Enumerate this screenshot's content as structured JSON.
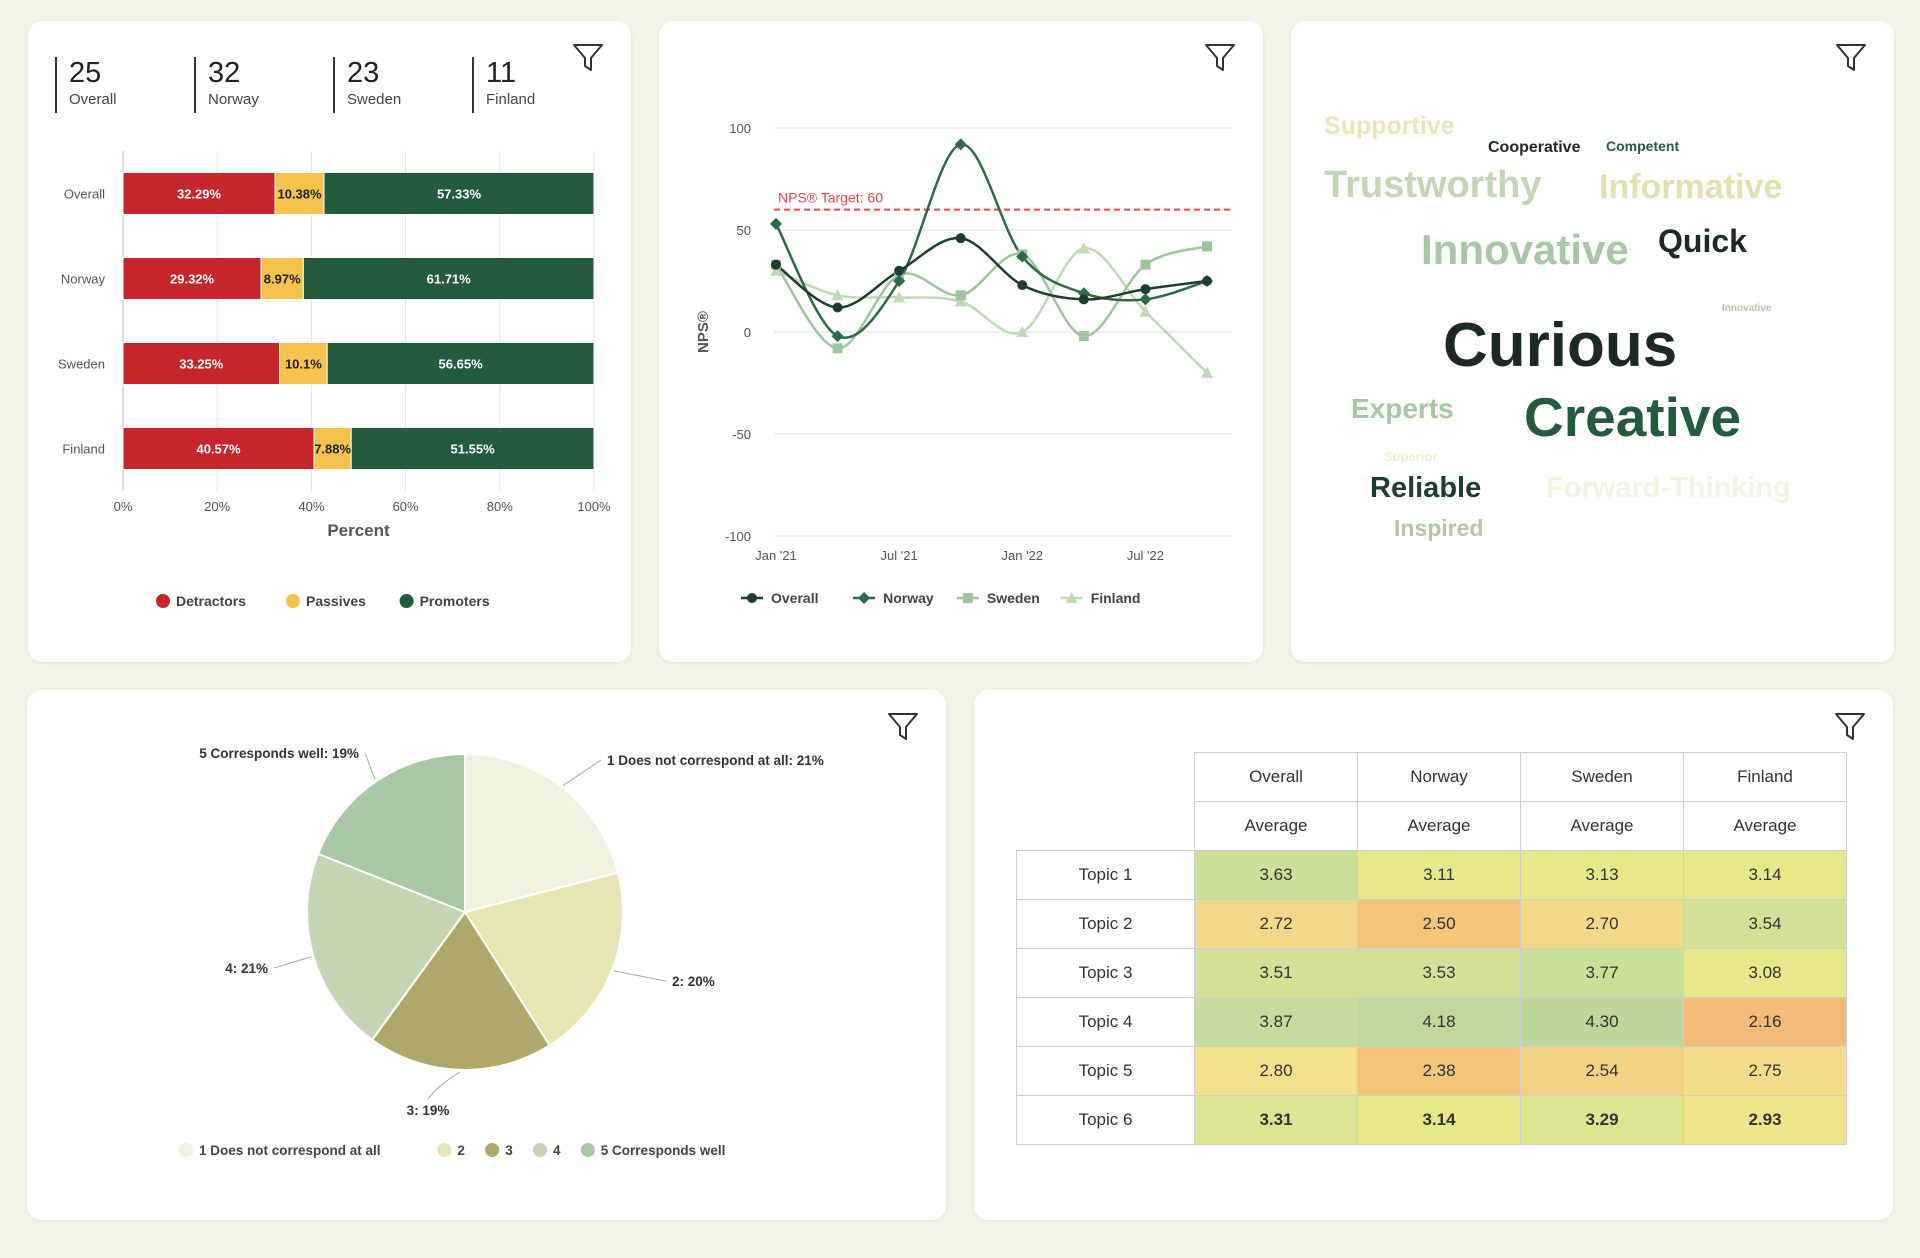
{
  "icons": {
    "filter": "filter-icon"
  },
  "kpis": [
    {
      "value": "25",
      "label": "Overall"
    },
    {
      "value": "32",
      "label": "Norway"
    },
    {
      "value": "23",
      "label": "Sweden"
    },
    {
      "value": "11",
      "label": "Finland"
    }
  ],
  "colors": {
    "detractors": "#c4262b",
    "passives": "#f5c24d",
    "promoters": "#245a3e",
    "target": "#e04848"
  },
  "chart_data": [
    {
      "type": "bar",
      "orientation": "horizontal",
      "stacked": true,
      "categories": [
        "Overall",
        "Norway",
        "Sweden",
        "Finland"
      ],
      "series": [
        {
          "name": "Detractors",
          "values": [
            32.29,
            29.32,
            33.25,
            40.57
          ],
          "labels": [
            "32.29%",
            "29.32%",
            "33.25%",
            "40.57%"
          ],
          "color": "#c4262b"
        },
        {
          "name": "Passives",
          "values": [
            10.38,
            8.97,
            10.1,
            7.88
          ],
          "labels": [
            "10.38%",
            "8.97%",
            "10.1%",
            "7.88%"
          ],
          "color": "#f5c24d"
        },
        {
          "name": "Promoters",
          "values": [
            57.33,
            61.71,
            56.65,
            51.55
          ],
          "labels": [
            "57.33%",
            "61.71%",
            "56.65%",
            "51.55%"
          ],
          "color": "#245a3e"
        }
      ],
      "xlabel": "Percent",
      "xticks": [
        "0%",
        "20%",
        "40%",
        "60%",
        "80%",
        "100%"
      ],
      "xlim": [
        0,
        100
      ],
      "legend": "bottom",
      "grid": true
    },
    {
      "type": "line",
      "x": [
        "2021-01",
        "2021-04",
        "2021-07",
        "2021-10",
        "2022-01",
        "2022-04",
        "2022-07",
        "2022-10"
      ],
      "xticks": [
        "Jan '21",
        "Jul '21",
        "Jan '22",
        "Jul '22"
      ],
      "series": [
        {
          "name": "Overall",
          "values": [
            33,
            12,
            30,
            46,
            23,
            16,
            21,
            25
          ],
          "color": "#1f3d2e",
          "marker": "circle"
        },
        {
          "name": "Norway",
          "values": [
            53,
            -2,
            25,
            92,
            37,
            19,
            16,
            25
          ],
          "color": "#2e6a46",
          "marker": "diamond"
        },
        {
          "name": "Sweden",
          "values": [
            33,
            -8,
            28,
            18,
            38,
            -2,
            33,
            42
          ],
          "color": "#9ec59e",
          "marker": "square"
        },
        {
          "name": "Finland",
          "values": [
            30,
            18,
            17,
            15,
            0,
            41,
            10,
            -20
          ],
          "color": "#c2d9b8",
          "marker": "triangle"
        }
      ],
      "ylabel": "NPS®",
      "yticks": [
        "100",
        "50",
        "0",
        "-50",
        "-100"
      ],
      "ylim": [
        -100,
        100
      ],
      "target": {
        "label": "NPS® Target: 60",
        "value": 60
      },
      "legend": "bottom",
      "grid": true
    },
    {
      "type": "pie",
      "categories": [
        "1 Does not correspond at all",
        "2",
        "3",
        "4",
        "5 Corresponds well"
      ],
      "values": [
        21,
        20,
        19,
        21,
        19
      ],
      "slice_labels": [
        "1 Does not correspond at all: 21%",
        "2: 20%",
        "3: 19%",
        "4: 21%",
        "5 Corresponds well: 19%"
      ],
      "colors": [
        "#f2f2e1",
        "#e8e4b4",
        "#b0a86a",
        "#c5d6b5",
        "#a8c7a4"
      ],
      "legend": "bottom"
    },
    {
      "type": "table",
      "columns": [
        "Overall",
        "Norway",
        "Sweden",
        "Finland"
      ],
      "subheader": "Average",
      "rows": [
        {
          "label": "Topic 1",
          "values": [
            "3.63",
            "3.11",
            "3.13",
            "3.14"
          ],
          "colors": [
            "#cadf98",
            "#e6e88a",
            "#e6e88a",
            "#e6e88a"
          ]
        },
        {
          "label": "Topic 2",
          "values": [
            "2.72",
            "2.50",
            "2.70",
            "3.54"
          ],
          "colors": [
            "#f2d98a",
            "#f2c57a",
            "#f2d98a",
            "#d3e196"
          ]
        },
        {
          "label": "Topic 3",
          "values": [
            "3.51",
            "3.53",
            "3.77",
            "3.08"
          ],
          "colors": [
            "#d3e196",
            "#d3e196",
            "#cadf98",
            "#e8e88a"
          ]
        },
        {
          "label": "Topic 4",
          "values": [
            "3.87",
            "4.18",
            "4.30",
            "2.16"
          ],
          "colors": [
            "#c6dc9c",
            "#bfd79c",
            "#bcd69c",
            "#f2bc78"
          ]
        },
        {
          "label": "Topic 5",
          "values": [
            "2.80",
            "2.38",
            "2.54",
            "2.75"
          ],
          "colors": [
            "#f2e08c",
            "#f2c47a",
            "#f2d386",
            "#f2dd8a"
          ]
        },
        {
          "label": "Topic 6",
          "values": [
            "3.31",
            "3.14",
            "3.29",
            "2.93"
          ],
          "colors": [
            "#dde591",
            "#e6e88a",
            "#dde591",
            "#efe48a"
          ]
        }
      ]
    }
  ],
  "wordcloud": [
    {
      "text": "Supportive",
      "color": "#e9e7b8"
    },
    {
      "text": "Cooperative",
      "color": "#1d2a24"
    },
    {
      "text": "Competent",
      "color": "#2b5a45"
    },
    {
      "text": "Trustworthy",
      "color": "#c5d6b5"
    },
    {
      "text": "Informative",
      "color": "#e2e2b0"
    },
    {
      "text": "Innovative",
      "color": "#a8c7a4"
    },
    {
      "text": "Quick",
      "color": "#1d2a24"
    },
    {
      "text": "Curious",
      "color": "#1d2a24"
    },
    {
      "text": "Innovative",
      "color": "#b4c8a8"
    },
    {
      "text": "Experts",
      "color": "#a8c7a4"
    },
    {
      "text": "Creative",
      "color": "#245a3e"
    },
    {
      "text": "Superior",
      "color": "#f0efd6"
    },
    {
      "text": "Reliable",
      "color": "#1f3d2e"
    },
    {
      "text": "Forward-Thinking",
      "color": "#f4f3e4"
    },
    {
      "text": "Inspired",
      "color": "#b4c8a8"
    }
  ]
}
